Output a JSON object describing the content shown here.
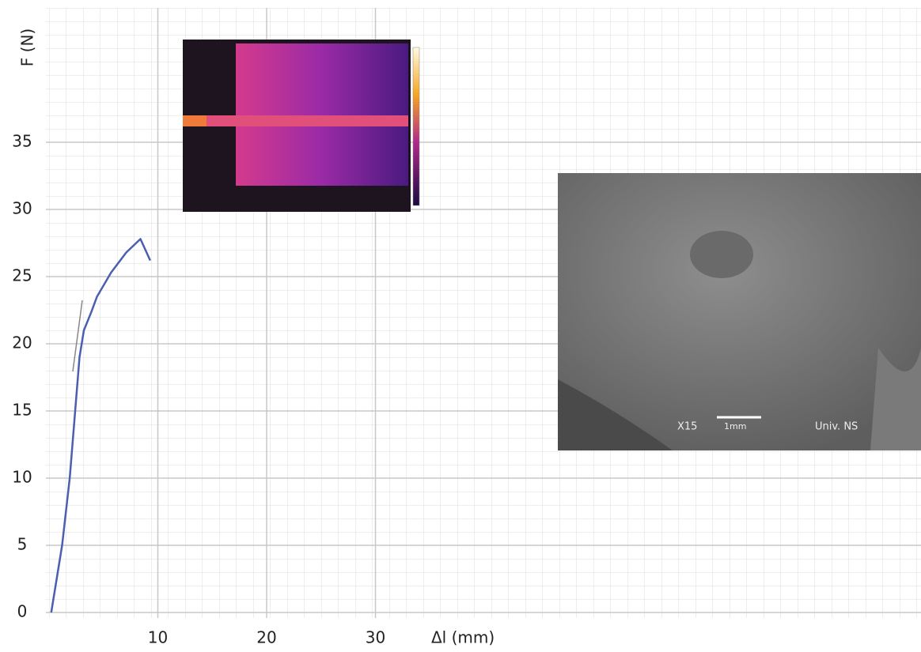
{
  "chart_data": {
    "type": "line",
    "y_label": "F (N)",
    "x_label": "Δl  (mm)",
    "xlim": [
      0,
      80
    ],
    "ylim": [
      0,
      45
    ],
    "xticks": [
      10,
      20,
      30
    ],
    "yticks": [
      0,
      5,
      10,
      15,
      20,
      25,
      30,
      35
    ],
    "grid": true,
    "series": [
      {
        "color": "#4a5fb0",
        "x": [
          0.2,
          0.4,
          1.2,
          1.9,
          2.4,
          2.8,
          3.2,
          3.9,
          4.4,
          5.7,
          7.1,
          8.4,
          9.3
        ],
        "values": [
          0,
          1,
          5,
          10,
          15,
          19,
          21,
          22.4,
          23.5,
          25.3,
          26.8,
          27.8,
          26.2
        ]
      }
    ],
    "sem_image": {
      "magnification": "X15",
      "scale": "1mm",
      "source": "Univ. NS"
    }
  }
}
